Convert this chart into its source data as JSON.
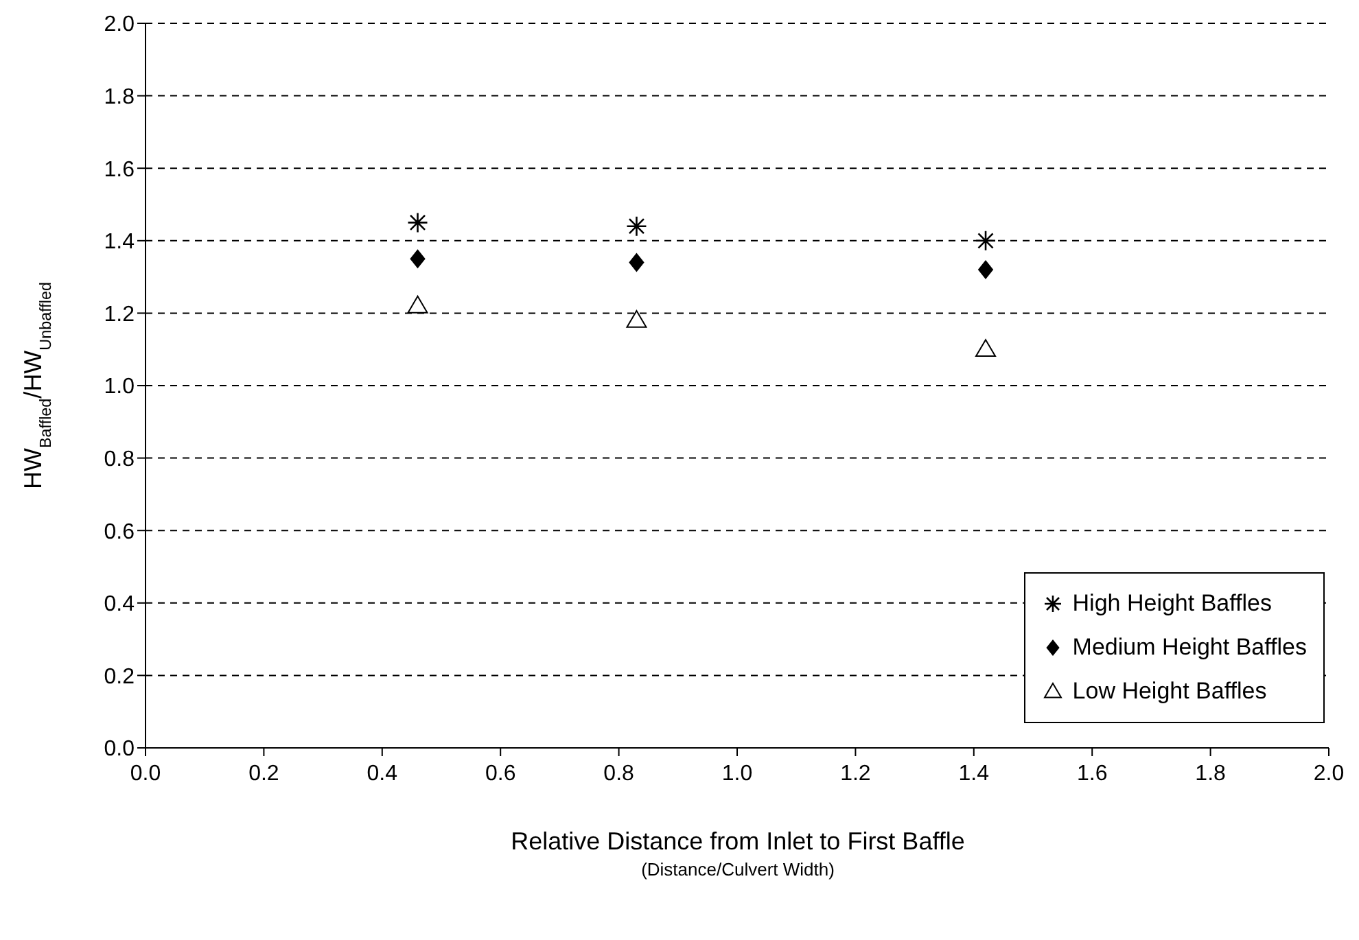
{
  "chart_data": {
    "type": "scatter",
    "xlabel": "Relative Distance from Inlet to First Baffle",
    "ylabel": "HW$_{Baffled}$/HW$_{Unbaffled}$",
    "annotations": [
      "(Distance/Culvert Width)"
    ],
    "x": [
      0.46,
      0.83,
      1.42
    ],
    "series": [
      {
        "name": "High Height Baffles",
        "color": "#000000",
        "marker": "cross",
        "values": [
          1.45,
          1.44,
          1.4
        ]
      },
      {
        "name": "Medium Height Baffles",
        "color": "#000000",
        "marker": "diamond",
        "values": [
          1.35,
          1.34,
          1.32
        ]
      },
      {
        "name": "Low Height Baffles",
        "color": "#000000",
        "marker": "triangle",
        "values": [
          1.22,
          1.18,
          1.1
        ]
      }
    ],
    "xlim": [
      0,
      2
    ],
    "xticks": [
      {
        "value": 0,
        "label": "0.0"
      },
      {
        "value": 0.2,
        "label": "0.2"
      },
      {
        "value": 0.4,
        "label": "0.4"
      },
      {
        "value": 0.6,
        "label": "0.6"
      },
      {
        "value": 0.8,
        "label": "0.8"
      },
      {
        "value": 1,
        "label": "1.0"
      },
      {
        "value": 1.2,
        "label": "1.2"
      },
      {
        "value": 1.4,
        "label": "1.4"
      },
      {
        "value": 1.6,
        "label": "1.6"
      },
      {
        "value": 1.8,
        "label": "1.8"
      },
      {
        "value": 2,
        "label": "2.0"
      }
    ],
    "ylim": [
      0,
      2
    ],
    "yticks": [
      {
        "value": 0,
        "label": "0.0"
      },
      {
        "value": 0.2,
        "label": "0.2"
      },
      {
        "value": 0.4,
        "label": "0.4"
      },
      {
        "value": 0.6,
        "label": "0.6"
      },
      {
        "value": 0.8,
        "label": "0.8"
      },
      {
        "value": 1,
        "label": "1.0"
      },
      {
        "value": 1.2,
        "label": "1.2"
      },
      {
        "value": 1.4,
        "label": "1.4"
      },
      {
        "value": 1.6,
        "label": "1.6"
      },
      {
        "value": 1.8,
        "label": "1.8"
      },
      {
        "value": 2,
        "label": "2.0"
      }
    ],
    "grid": "y",
    "line_style": "dashed",
    "legend": "bottom right"
  }
}
